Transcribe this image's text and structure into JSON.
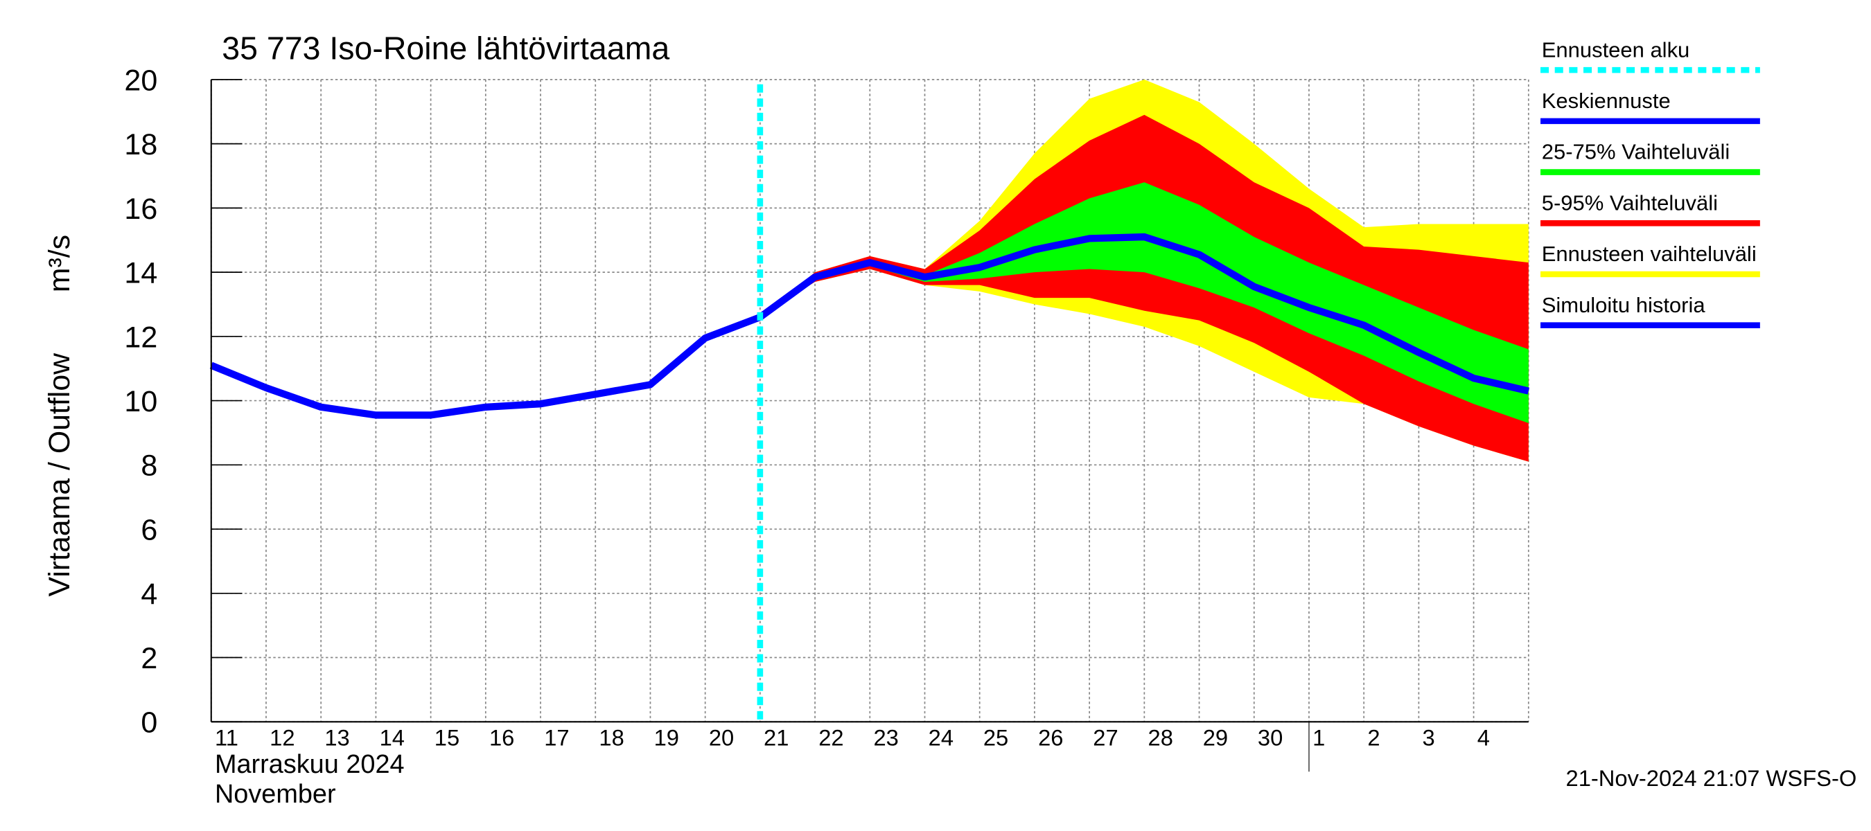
{
  "chart_data": {
    "type": "forecast",
    "title": "35 773 Iso-Roine lähtövirtaama",
    "y_label": "Virtaama / Outflow",
    "y_unit": "m³/s",
    "x_label_fi": "Marraskuu 2024",
    "x_label_en": "November",
    "footer": "21-Nov-2024 21:07 WSFS-O",
    "month_break": "1",
    "categories": [
      "11",
      "12",
      "13",
      "14",
      "15",
      "16",
      "17",
      "18",
      "19",
      "20",
      "21",
      "22",
      "23",
      "24",
      "25",
      "26",
      "27",
      "28",
      "29",
      "30",
      "1",
      "2",
      "3",
      "4",
      null
    ],
    "ylim": [
      0,
      20
    ],
    "yticks": [
      0,
      2,
      4,
      6,
      8,
      10,
      12,
      14,
      16,
      18,
      20
    ],
    "grid": true,
    "series": [
      {
        "name": "Ennusteen alku",
        "color": "#00ffff",
        "kind": "vline",
        "at": "21"
      },
      {
        "name": "Keskiennuste",
        "color": "#0000ff",
        "kind": "line",
        "values": [
          null,
          null,
          null,
          null,
          null,
          null,
          null,
          null,
          null,
          null,
          12.6,
          13.85,
          14.3,
          13.85,
          14.15,
          14.7,
          15.05,
          15.1,
          14.55,
          13.55,
          12.9,
          12.35,
          11.5,
          10.7,
          10.3
        ]
      },
      {
        "name": "25-75% Vaihteluväli",
        "color": "#00ff00",
        "kind": "band",
        "low": [
          null,
          null,
          null,
          null,
          null,
          null,
          null,
          null,
          null,
          null,
          12.6,
          13.8,
          14.2,
          13.7,
          13.8,
          14.0,
          14.1,
          14.0,
          13.5,
          12.9,
          12.1,
          11.4,
          10.6,
          9.9,
          9.3
        ],
        "high": [
          null,
          null,
          null,
          null,
          null,
          null,
          null,
          null,
          null,
          null,
          12.6,
          13.9,
          14.4,
          13.9,
          14.6,
          15.5,
          16.3,
          16.8,
          16.1,
          15.1,
          14.3,
          13.6,
          12.9,
          12.2,
          11.6
        ]
      },
      {
        "name": "5-95% Vaihteluväli",
        "color": "#ff0000",
        "kind": "band",
        "low": [
          null,
          null,
          null,
          null,
          null,
          null,
          null,
          null,
          null,
          null,
          12.6,
          13.7,
          14.1,
          13.6,
          13.6,
          13.2,
          13.2,
          12.8,
          12.5,
          11.8,
          10.9,
          9.9,
          9.2,
          8.6,
          8.1
        ],
        "high": [
          null,
          null,
          null,
          null,
          null,
          null,
          null,
          null,
          null,
          null,
          12.6,
          14.0,
          14.5,
          14.1,
          15.3,
          16.9,
          18.1,
          18.9,
          18.0,
          16.8,
          16.0,
          14.8,
          14.7,
          14.5,
          14.3
        ]
      },
      {
        "name": "Ennusteen vaihteluväli",
        "color": "#ffff00",
        "kind": "band",
        "low": [
          null,
          null,
          null,
          null,
          null,
          null,
          null,
          null,
          null,
          null,
          12.6,
          13.7,
          14.1,
          13.6,
          13.4,
          13.0,
          12.7,
          12.3,
          11.7,
          10.9,
          10.1,
          9.9,
          9.2,
          8.6,
          8.1
        ],
        "high": [
          null,
          null,
          null,
          null,
          null,
          null,
          null,
          null,
          null,
          null,
          12.6,
          14.0,
          14.5,
          14.1,
          15.6,
          17.7,
          19.4,
          20.0,
          19.3,
          18.0,
          16.6,
          15.4,
          15.5,
          15.5,
          15.5
        ]
      },
      {
        "name": "Simuloitu historia",
        "color": "#0000ff",
        "kind": "line",
        "values": [
          11.1,
          10.4,
          9.8,
          9.55,
          9.55,
          9.8,
          9.9,
          10.2,
          10.5,
          11.95,
          12.6,
          null,
          null,
          null,
          null,
          null,
          null,
          null,
          null,
          null,
          null,
          null,
          null,
          null,
          null
        ]
      }
    ]
  }
}
